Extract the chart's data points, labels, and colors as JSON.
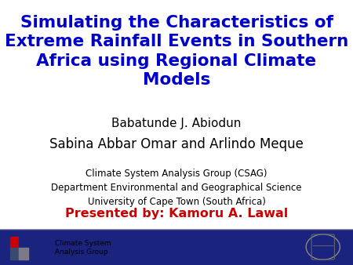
{
  "title_line1": "Simulating the Characteristics of",
  "title_line2": "Extreme Rainfall Events in Southern",
  "title_line3": "Africa using Regional Climate",
  "title_line4": "Models",
  "title_color": "#0000CC",
  "author1": "Babatunde J. Abiodun",
  "author2": "Sabina Abbar Omar and Arlindo Meque",
  "affil1": "Climate System Analysis Group (CSAG)",
  "affil2": "Department Environmental and Geographical Science",
  "affil3": "University of Cape Town (South Africa)",
  "presenter_text": "Presented by: Kamoru A. Lawal",
  "presenter_color": "#CC0000",
  "background_color": "#FFFFFF",
  "footer_bar_color": "#1a237e",
  "footer_accent_color": "#b0b0b0",
  "footer_text": "Climate System\nAnalysis Group",
  "title_fontsize": 15.5,
  "author1_fontsize": 11,
  "author2_fontsize": 12,
  "affil_fontsize": 8.5,
  "presenter_fontsize": 11.5,
  "footer_fontsize": 6.5
}
